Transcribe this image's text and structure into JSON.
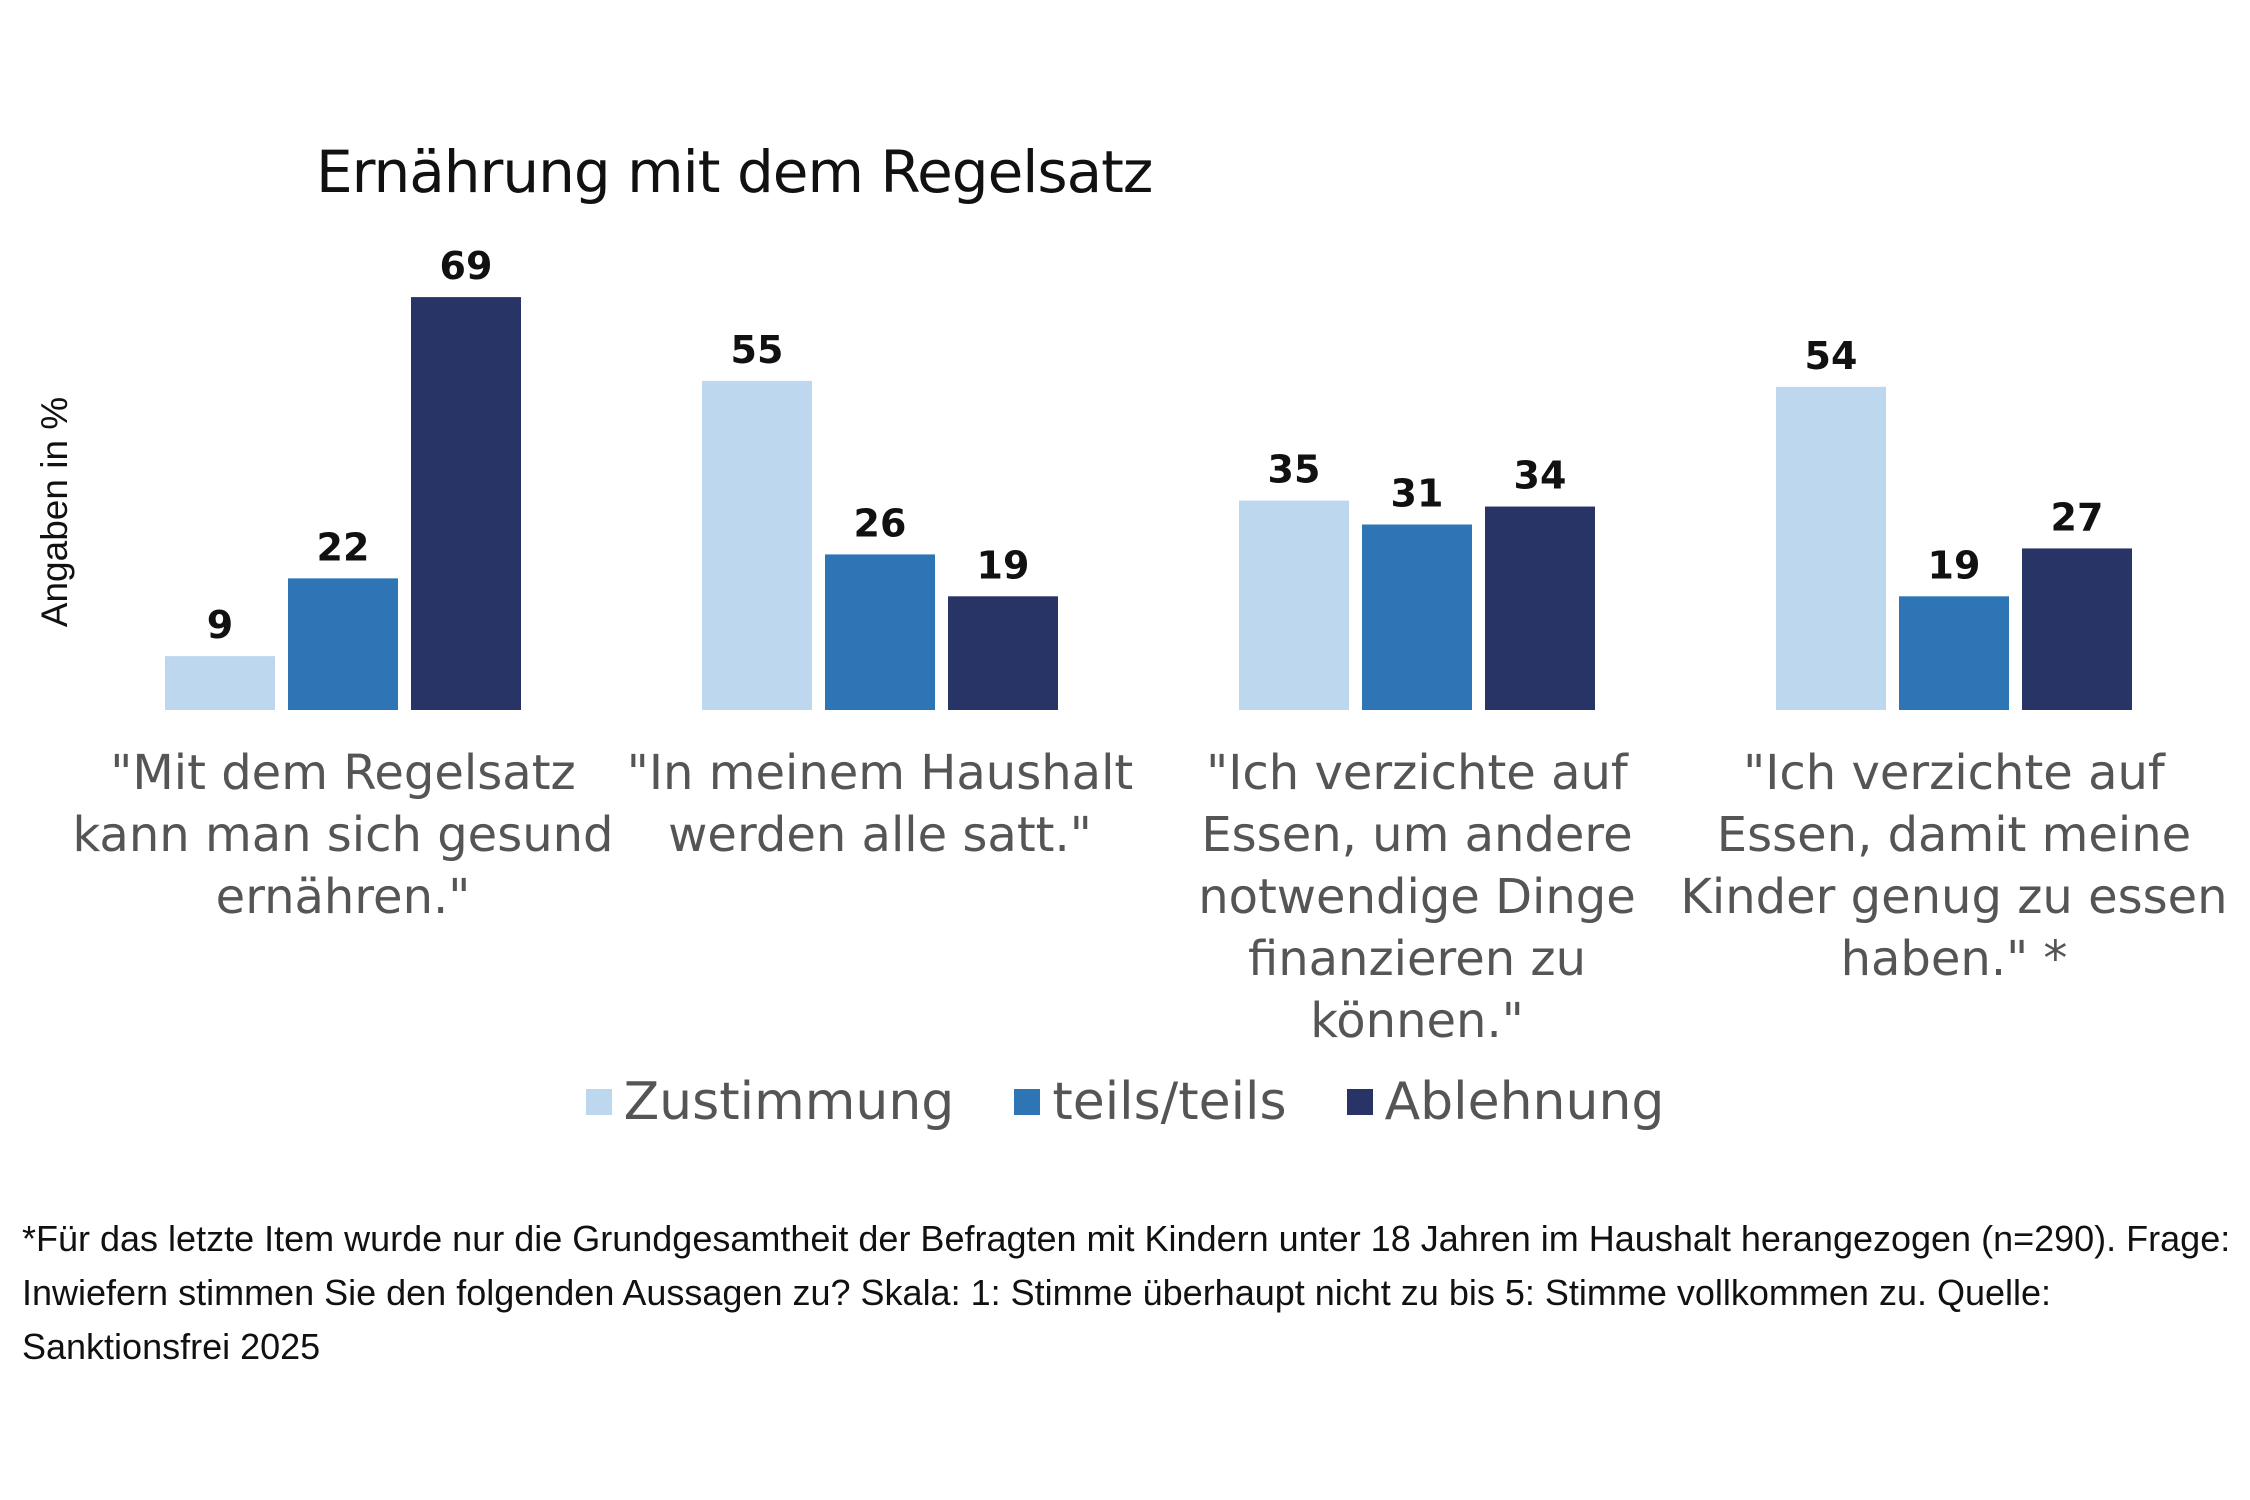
{
  "chart_data": {
    "type": "bar",
    "title": "Ernährung mit dem Regelsatz",
    "ylabel": "Angaben in %",
    "xlabel": "",
    "ylim": [
      0,
      70
    ],
    "grid": false,
    "legend_placement": "bottom",
    "categories": [
      "\"Mit dem Regelsatz\nkann man sich gesund\nernähren.\"",
      "\"In meinem Haushalt\nwerden alle satt.\"",
      "\"Ich verzichte auf\nEssen, um andere\nnotwendige Dinge\nfinanzieren zu können.\"",
      "\"Ich verzichte auf\nEssen, damit meine\nKinder genug zu essen\nhaben.\" *"
    ],
    "series": [
      {
        "name": "Zustimmung",
        "color": "#bdd7ee",
        "values": [
          9,
          55,
          35,
          54
        ]
      },
      {
        "name": "teils/teils",
        "color": "#2e75b6",
        "values": [
          22,
          26,
          31,
          19
        ]
      },
      {
        "name": "Ablehnung",
        "color": "#283366",
        "values": [
          69,
          19,
          34,
          27
        ]
      }
    ]
  },
  "footnote": "*Für das letzte Item wurde nur die Grundgesamtheit der Befragten mit Kindern unter 18 Jahren im Haushalt herangezogen (n=290). Frage: Inwiefern stimmen Sie den folgenden Aussagen zu? Skala: 1: Stimme überhaupt nicht zu bis 5: Stimme vollkommen zu. Quelle: Sanktionsfrei 2025"
}
